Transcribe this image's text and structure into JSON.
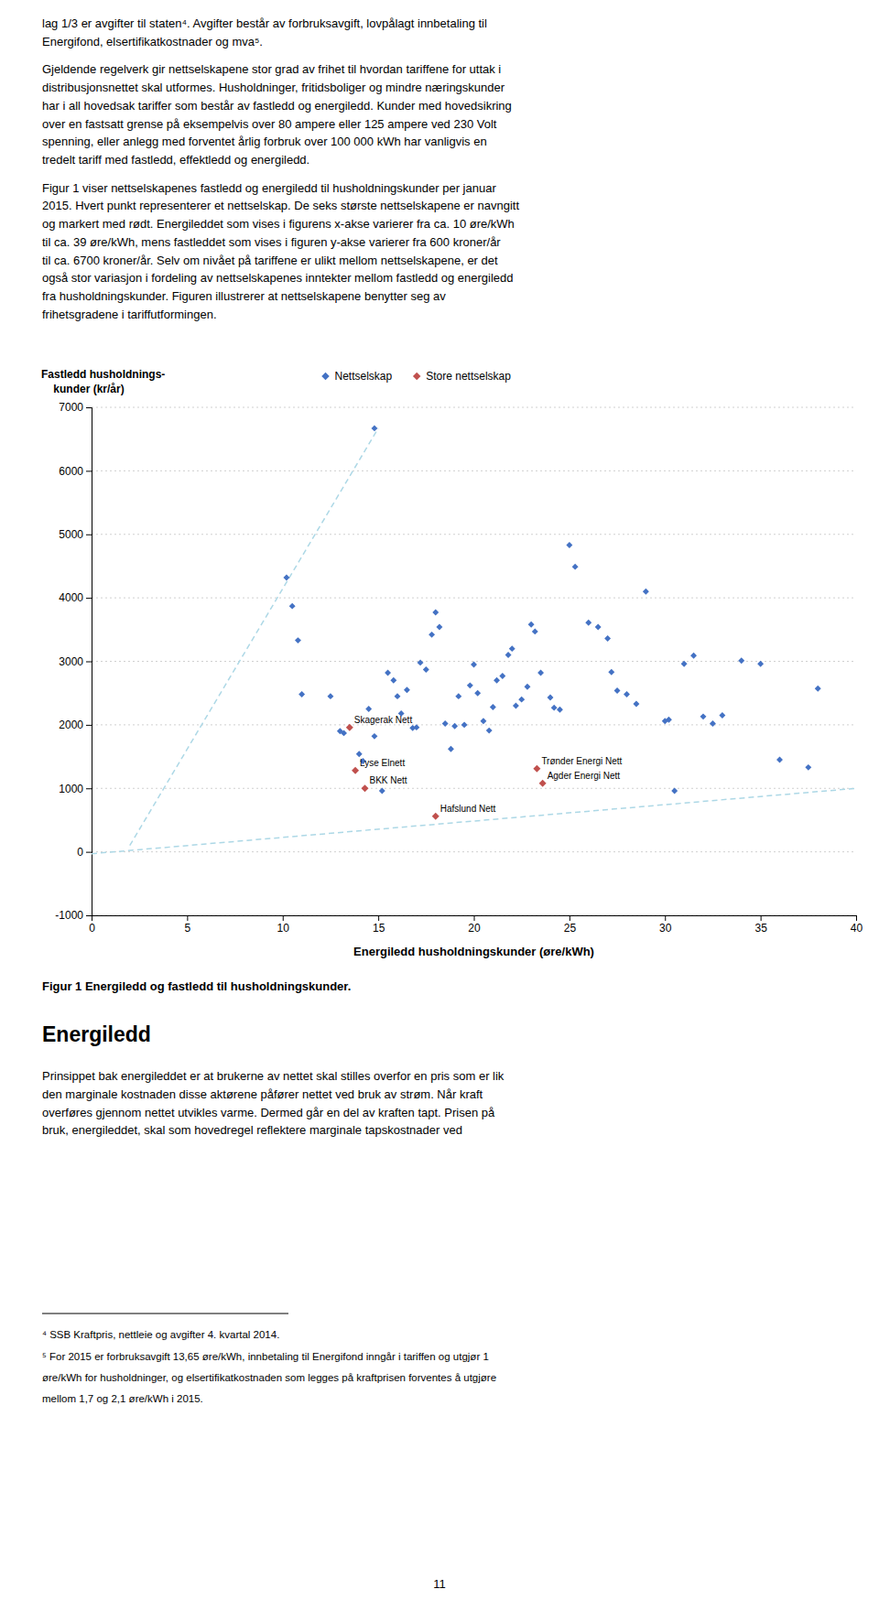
{
  "text_before": [
    [
      "lag 1/3 er avgifter til staten⁴. Avgifter består av forbruksavgift, lovpålagt innbetaling til",
      "Energifond, elsertifikatkostnader og mva⁵."
    ],
    [
      "Gjeldende regelverk gir nettselskapene stor grad av frihet til hvordan tariffene for uttak i",
      "distribusjonsnettet skal utformes. Husholdninger, fritidsboliger og mindre næringskunder",
      "har i all hovedsak tariffer som består av fastledd og energiledd. Kunder med hovedsikring",
      "over en fastsatt grense på eksempelvis over 80 ampere eller 125 ampere ved 230 Volt",
      "spenning, eller anlegg med forventet årlig forbruk over 100 000 kWh har vanligvis en",
      "tredelt tariff med fastledd, effektledd og energiledd."
    ],
    [
      "Figur 1 viser nettselskapenes fastledd og energiledd til husholdningskunder per januar",
      "2015. Hvert punkt representerer et nettselskap. De seks største nettselskapene er navngitt",
      "og markert med rødt. Energileddet som vises i figurens x-akse varierer fra ca. 10 øre/kWh",
      "til ca. 39 øre/kWh, mens fastleddet som vises i figuren y-akse varierer fra 600 kroner/år",
      "til ca. 6700 kroner/år. Selv om nivået på tariffene er ulikt mellom nettselskapene, er det",
      "også stor variasjon i fordeling av nettselskapenes inntekter mellom fastledd og energiledd",
      "fra husholdningskunder. Figuren illustrerer at nettselskapene benytter seg av",
      "frihetsgradene i tariffutformingen."
    ]
  ],
  "chart_data": {
    "type": "scatter",
    "x_label": "Energiledd husholdningskunder (øre/kWh)",
    "y_label": [
      "Fastledd husholdnings-",
      "    kunder (kr/år)"
    ],
    "xlim": [
      0,
      40
    ],
    "ylim": [
      -1000,
      7000
    ],
    "xticks": [
      0,
      5,
      10,
      15,
      20,
      25,
      30,
      35,
      40
    ],
    "yticks": [
      -1000,
      0,
      1000,
      2000,
      3000,
      4000,
      5000,
      6000,
      7000
    ],
    "grid": true,
    "legend": "top",
    "series": [
      {
        "name": "Nettselskap",
        "type": "scatter",
        "marker": "diamond",
        "color": "#4472C4",
        "x": [
          10.2,
          10.5,
          10.8,
          11.0,
          12.5,
          13.0,
          13.2,
          14.0,
          14.2,
          14.5,
          14.8,
          15.2,
          15.5,
          15.8,
          16.0,
          16.2,
          16.5,
          16.8,
          17.0,
          17.2,
          17.5,
          17.8,
          18.0,
          18.2,
          18.5,
          18.8,
          19.0,
          19.2,
          19.5,
          19.8,
          20.0,
          20.2,
          20.5,
          20.8,
          21.0,
          21.2,
          21.5,
          21.8,
          22.0,
          22.2,
          22.5,
          22.8,
          23.0,
          23.2,
          23.5,
          24.0,
          24.2,
          24.5,
          25.0,
          25.3,
          26.0,
          26.5,
          27.0,
          27.2,
          27.5,
          28.0,
          28.5,
          29.0,
          30.0,
          30.2,
          30.5,
          31.0,
          31.5,
          32.0,
          32.5,
          33.0,
          34.0,
          35.0,
          36.0,
          37.5,
          38.0,
          14.8
        ],
        "values": [
          4320,
          3870,
          3330,
          2480,
          2450,
          1900,
          1870,
          1540,
          1430,
          2250,
          1820,
          960,
          2820,
          2700,
          2450,
          2180,
          2550,
          1950,
          1960,
          2980,
          2870,
          3420,
          3770,
          3540,
          2020,
          1620,
          1980,
          2450,
          2000,
          2620,
          2950,
          2500,
          2060,
          1910,
          2280,
          2700,
          2770,
          3100,
          3200,
          2300,
          2400,
          2600,
          3580,
          3470,
          2820,
          2430,
          2270,
          2240,
          4830,
          4490,
          3610,
          3540,
          3360,
          2830,
          2540,
          2480,
          2330,
          4100,
          2060,
          2080,
          960,
          2960,
          3090,
          2130,
          2020,
          2150,
          3010,
          2960,
          1450,
          1330,
          2570,
          6670
        ]
      },
      {
        "name": "Store nettselskap",
        "type": "scatter",
        "marker": "diamond",
        "color": "#C0504D",
        "x": [
          13.5,
          13.8,
          14.3,
          23.3,
          23.6,
          18.0
        ],
        "values": [
          1960,
          1280,
          1000,
          1310,
          1080,
          560
        ],
        "point_labels": [
          "Skagerak Nett",
          "Lyse Elnett",
          "BKK Nett",
          "Trønder Energi Nett",
          "Agder Energi Nett",
          "Hafslund Nett"
        ]
      },
      {
        "type": "line",
        "line_style": "dashed",
        "color": "#ADD8E6",
        "x": [
          2,
          15.0
        ],
        "values": [
          100,
          6670
        ]
      },
      {
        "type": "line",
        "line_style": "dashed",
        "color": "#ADD8E6",
        "x": [
          0,
          40
        ],
        "values": [
          -30,
          1000
        ]
      }
    ]
  },
  "caption": "Figur 1 Energiledd og fastledd til husholdningskunder.",
  "heading": "Energiledd",
  "text_after": [
    "Prinsippet bak energileddet er at brukerne av nettet skal stilles overfor en pris som er lik",
    "den marginale kostnaden disse aktørene påfører nettet ved bruk av strøm. Når kraft",
    "overføres gjennom nettet utvikles varme. Dermed går en del av kraften tapt. Prisen på",
    "bruk, energileddet, skal som hovedregel reflektere marginale tapskostnader ved"
  ],
  "footnotes": [
    "⁴ SSB Kraftpris, nettleie og avgifter 4. kvartal 2014.",
    "⁵ For 2015 er forbruksavgift 13,65 øre/kWh, innbetaling til Energifond inngår i tariffen og utgjør 1",
    "øre/kWh for husholdninger, og elsertifikatkostnaden som legges på kraftprisen forventes å utgjøre",
    "mellom 1,7 og 2,1 øre/kWh i 2015."
  ],
  "page_number": "11"
}
